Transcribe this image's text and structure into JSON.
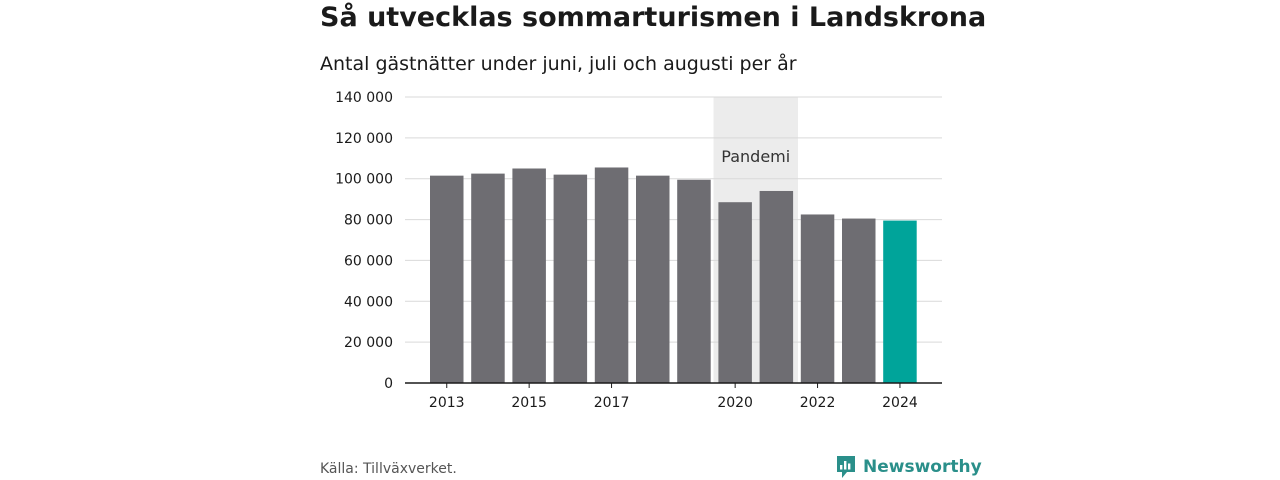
{
  "header": {
    "title": "Så utvecklas sommarturismen i Landskrona",
    "subtitle": "Antal gästnätter under juni, juli och augusti per år"
  },
  "footer": {
    "source": "Källa: Tillväxverket.",
    "brand": "Newsworthy"
  },
  "colors": {
    "bar": "#6e6d72",
    "highlight": "#00a49a",
    "pandemic_band": "#ececec",
    "grid": "#d9d9d9",
    "brand": "#2a8f8a"
  },
  "icons": {
    "brand_logo": "newsworthy-logo-icon"
  },
  "chart_data": {
    "type": "bar",
    "categories": [
      "2013",
      "2014",
      "2015",
      "2016",
      "2017",
      "2018",
      "2019",
      "2020",
      "2021",
      "2022",
      "2023",
      "2024"
    ],
    "values": [
      101500,
      102500,
      105000,
      102000,
      105500,
      101500,
      99500,
      88500,
      94000,
      82500,
      80500,
      79500
    ],
    "highlight_category": "2024",
    "x_tick_labels": [
      "2013",
      "2015",
      "2017",
      "2020",
      "2022",
      "2024"
    ],
    "y_ticks": [
      0,
      20000,
      40000,
      60000,
      80000,
      100000,
      120000,
      140000
    ],
    "y_tick_labels": [
      "0",
      "20 000",
      "40 000",
      "60 000",
      "80 000",
      "100 000",
      "120 000",
      "140 000"
    ],
    "ylim": [
      0,
      140000
    ],
    "grid": true,
    "xlabel": "",
    "ylabel": "",
    "annotation": {
      "label": "Pandemi",
      "from": "2020",
      "to": "2021"
    }
  }
}
